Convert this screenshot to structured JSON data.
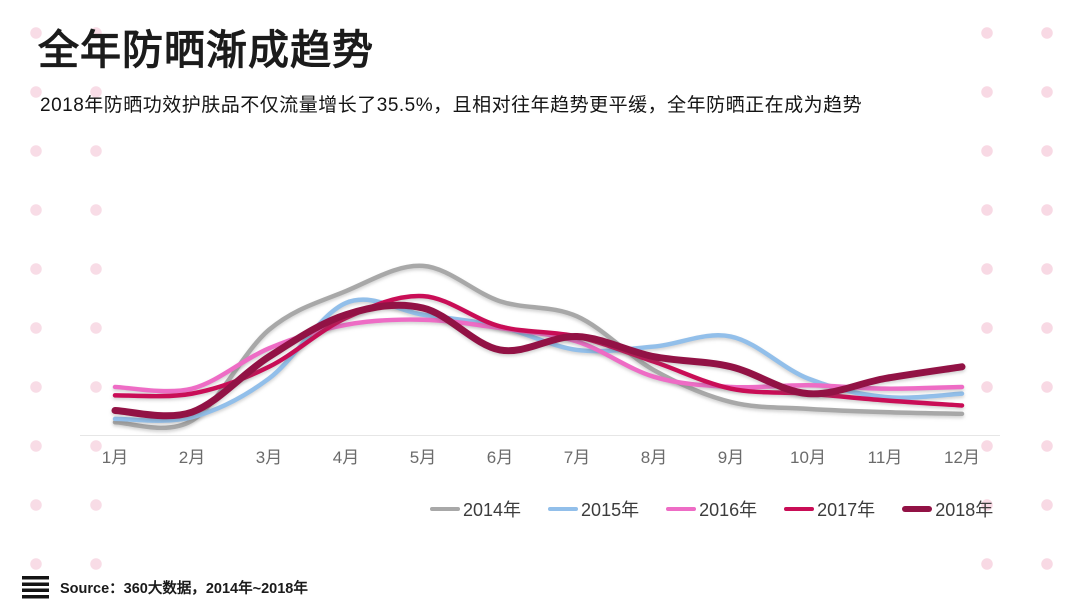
{
  "header": {
    "title": "全年防晒渐成趋势",
    "subtitle": "2018年防晒功效护肤品不仅流量增长了35.5%，且相对往年趋势更平缓，全年防晒正在成为趋势"
  },
  "source": {
    "icon": "list-icon",
    "text": "Source：360大数据，2014年~2018年"
  },
  "colors": {
    "background": "#ffffff",
    "title_text": "#1b1b1b",
    "axis_line": "#e6e6e6",
    "axis_label": "#6b6b6b",
    "legend_text": "#3c3c3c",
    "dot_pattern": "#f8dce6"
  },
  "chart_data": {
    "type": "line",
    "title": "",
    "xlabel": "",
    "ylabel": "",
    "ylim": [
      0,
      110
    ],
    "grid": false,
    "legend_position": "bottom-right",
    "note": "y-axis unlabeled in source image; values are a relative traffic index 0-100 estimated from pixel positions",
    "categories": [
      "1月",
      "2月",
      "3月",
      "4月",
      "5月",
      "6月",
      "7月",
      "8月",
      "9月",
      "10月",
      "11月",
      "12月"
    ],
    "series": [
      {
        "name": "2014年",
        "color": "#a8a8a8",
        "stroke_width": 4.5,
        "values": [
          7,
          8,
          62,
          85,
          100,
          79,
          70,
          38,
          19,
          15,
          13,
          12
        ]
      },
      {
        "name": "2015年",
        "color": "#92bfea",
        "stroke_width": 4.5,
        "values": [
          9,
          10,
          33,
          78,
          71,
          64,
          50,
          52,
          58,
          33,
          22,
          24
        ]
      },
      {
        "name": "2016年",
        "color": "#ee6cc5",
        "stroke_width": 4.5,
        "values": [
          28,
          27,
          51,
          65,
          68,
          63,
          55,
          34,
          28,
          29,
          27,
          28
        ]
      },
      {
        "name": "2017年",
        "color": "#c90d56",
        "stroke_width": 4.5,
        "values": [
          23,
          24,
          40,
          69,
          82,
          64,
          58,
          43,
          27,
          24,
          20,
          17
        ]
      },
      {
        "name": "2018年",
        "color": "#921245",
        "stroke_width": 7,
        "values": [
          14,
          13,
          46,
          71,
          75,
          50,
          58,
          46,
          40,
          24,
          33,
          40
        ]
      }
    ]
  }
}
